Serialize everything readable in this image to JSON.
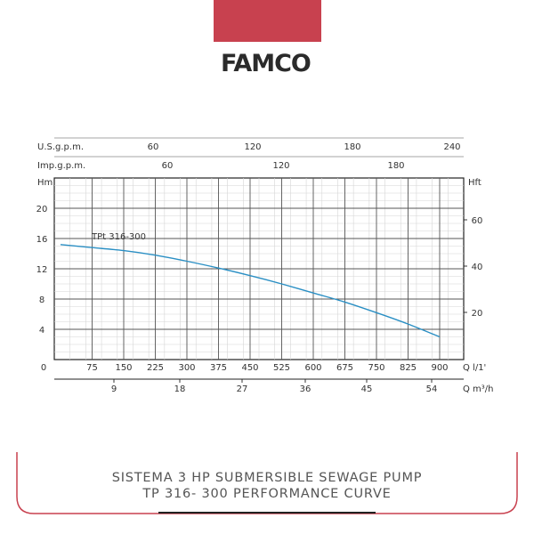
{
  "brand": {
    "logo_text": "FAMCO",
    "banner_color": "#c8414f"
  },
  "caption": {
    "line1": "SISTEMA 3 HP SUBMERSIBLE SEWAGE PUMP",
    "line2": "TP 316- 300 PERFORMANCE CURVE"
  },
  "chart_data": {
    "type": "line",
    "title": "",
    "grid": true,
    "series": [
      {
        "name": "TPt 316-300",
        "color": "#2a8fc4",
        "x": [
          0,
          75,
          150,
          225,
          300,
          375,
          450,
          525,
          600,
          675,
          750,
          825,
          900
        ],
        "y": [
          15.2,
          14.8,
          14.4,
          13.8,
          13.0,
          12.1,
          11.1,
          10.0,
          8.8,
          7.6,
          6.2,
          4.7,
          3.0
        ]
      }
    ],
    "axes": {
      "x_main": {
        "label": "Q l/1'",
        "ticks": [
          "0",
          "75",
          "150",
          "225",
          "300",
          "375",
          "450",
          "525",
          "600",
          "675",
          "750",
          "825",
          "900"
        ],
        "range": [
          0,
          900
        ]
      },
      "x_m3h": {
        "label": "Q m³/h",
        "ticks": [
          "9",
          "18",
          "27",
          "36",
          "45",
          "54"
        ]
      },
      "x_usgpm": {
        "label": "U.S.g.p.m.",
        "ticks": [
          "60",
          "120",
          "180",
          "240"
        ]
      },
      "x_impgpm": {
        "label": "Imp.g.p.m.",
        "ticks": [
          "60",
          "120",
          "180"
        ]
      },
      "y_left": {
        "label": "Hm",
        "ticks": [
          "4",
          "8",
          "12",
          "16",
          "20"
        ],
        "range": [
          0,
          24
        ]
      },
      "y_right": {
        "label": "Hft",
        "ticks": [
          "20",
          "40",
          "60"
        ]
      }
    }
  }
}
